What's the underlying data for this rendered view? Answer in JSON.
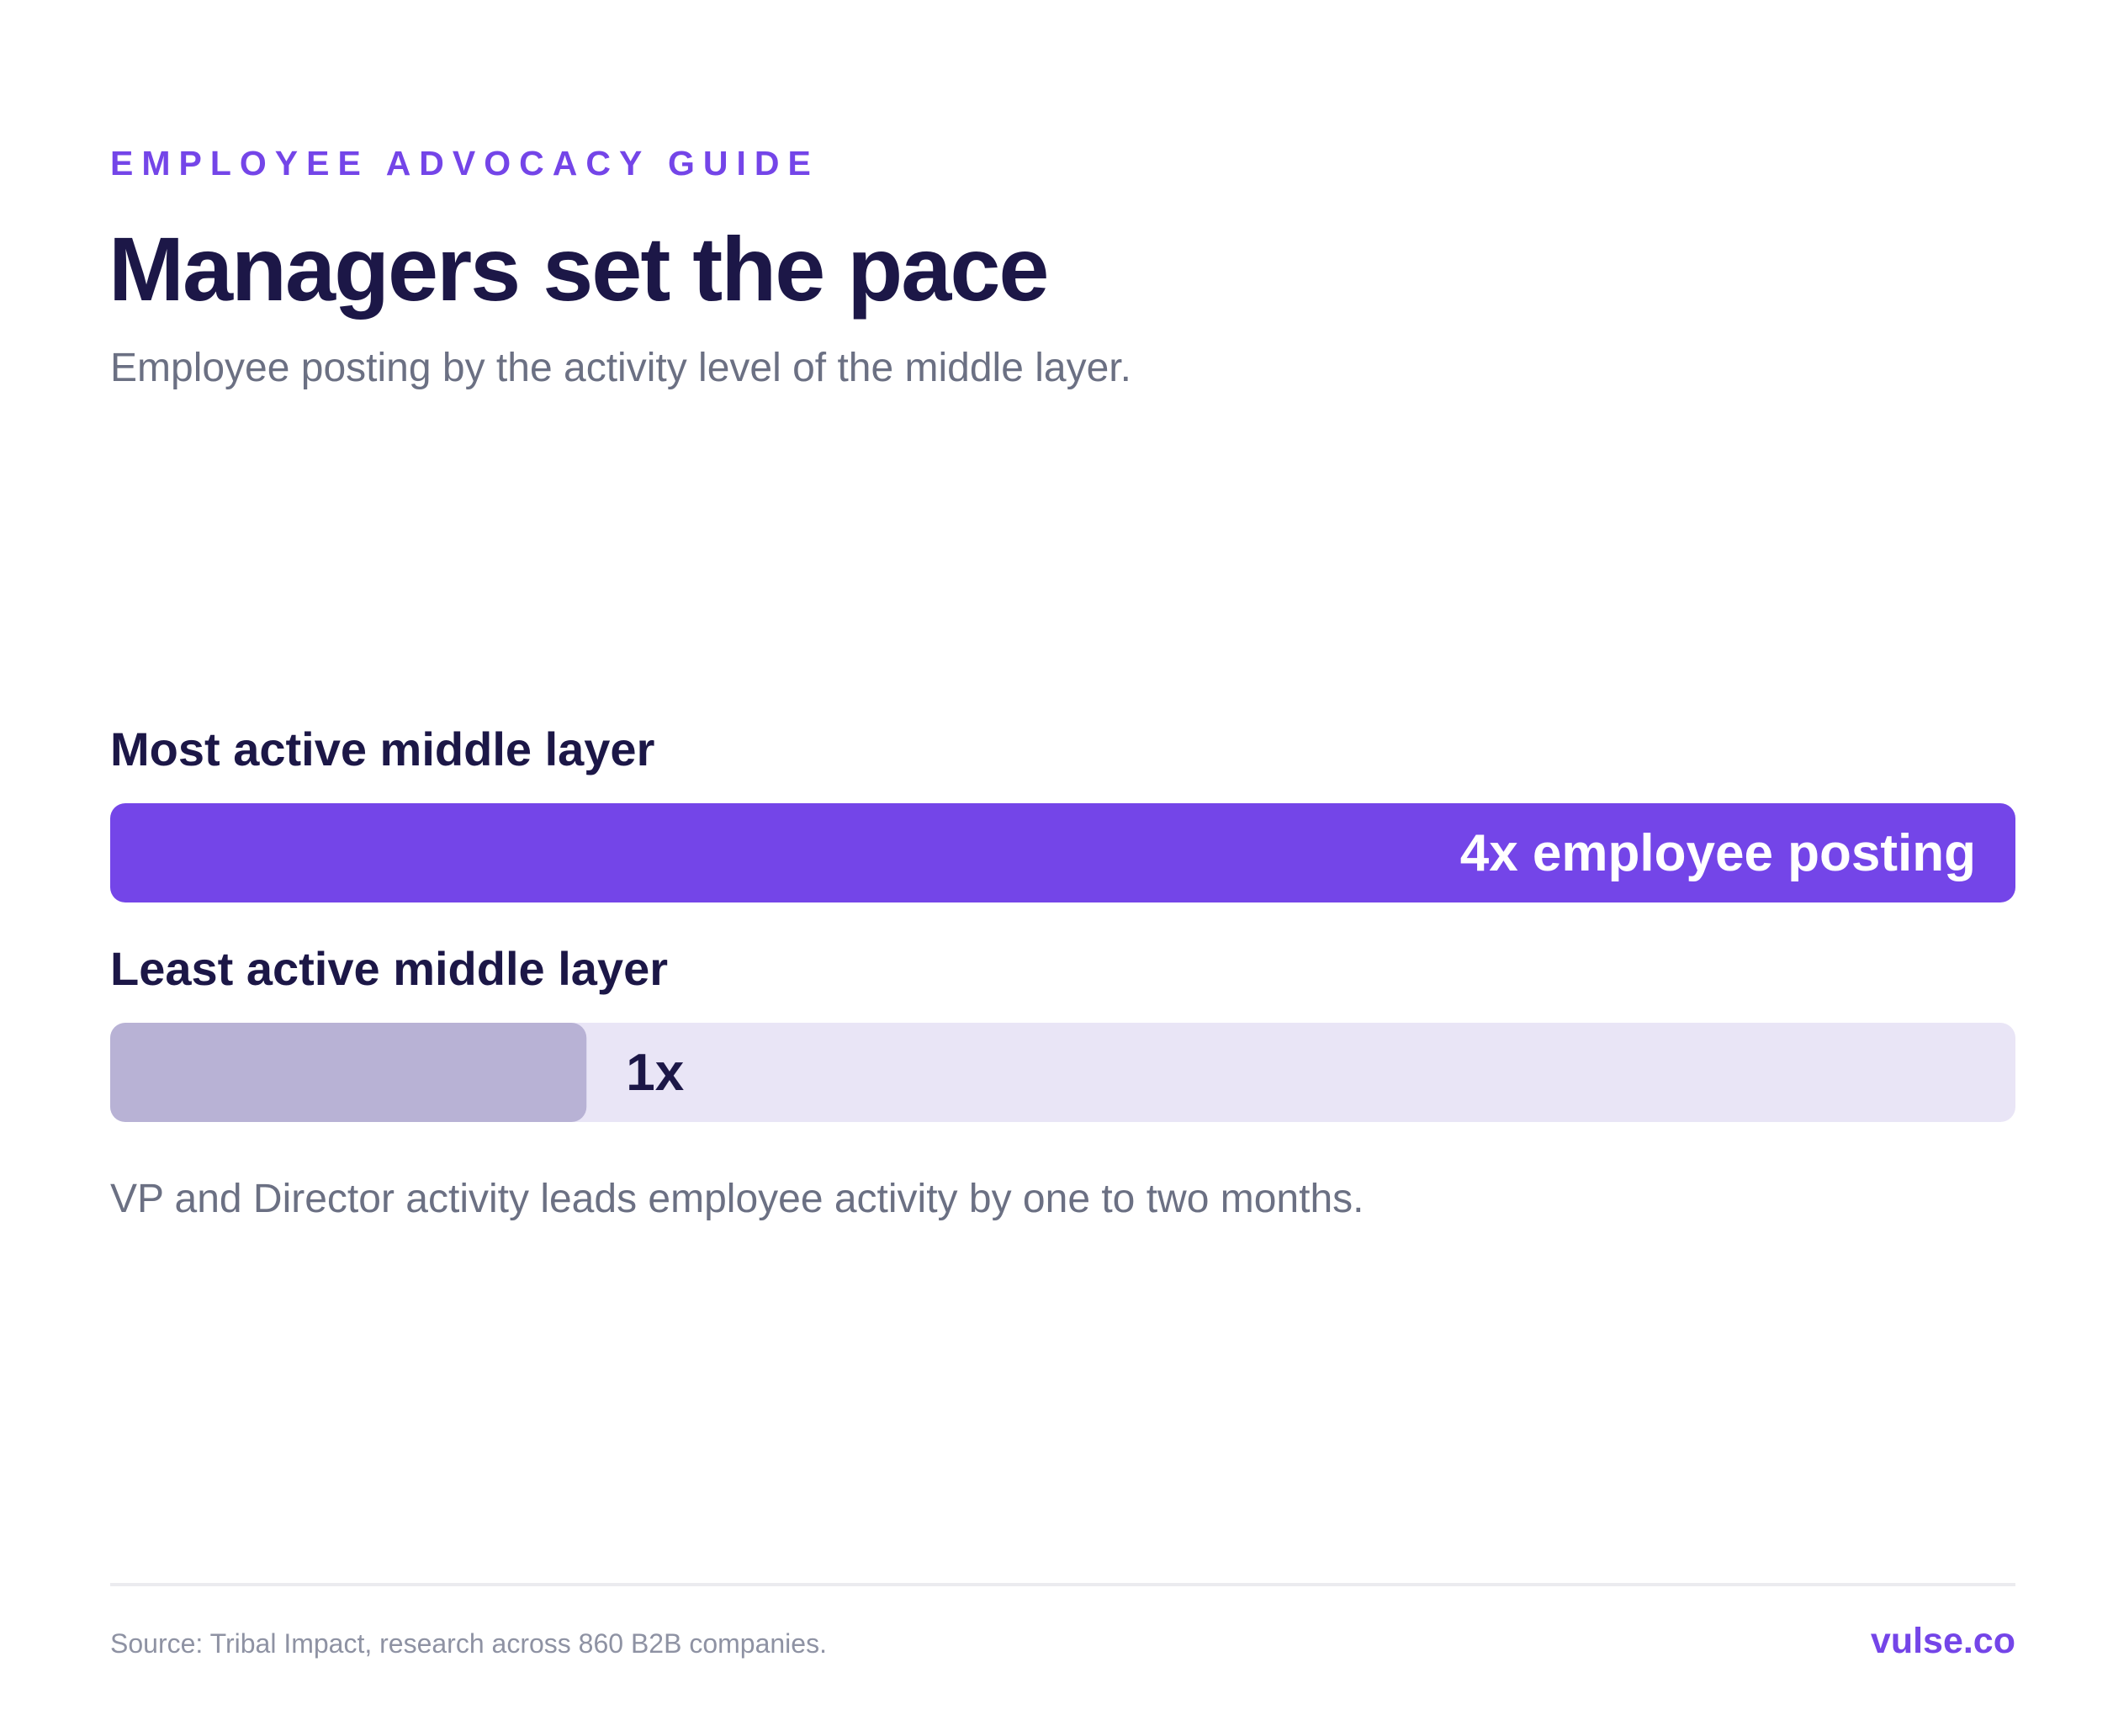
{
  "header": {
    "eyebrow": "EMPLOYEE ADVOCACY GUIDE",
    "title": "Managers set the pace",
    "subtitle": "Employee posting by the activity level of the middle layer."
  },
  "note": "VP and Director activity leads employee activity by one to two months.",
  "footer": {
    "source": "Source: Tribal Impact, research across 860 B2B companies.",
    "brand": "vulse.co"
  },
  "colors": {
    "accent": "#7445e8",
    "muted_bar": "#b8b2d5",
    "track": "#e9e5f6",
    "text_dark": "#1c1747",
    "text_light": "#ffffff"
  },
  "chart_data": {
    "type": "bar",
    "orientation": "horizontal",
    "categories": [
      "Most active middle layer",
      "Least active middle layer"
    ],
    "values": [
      4,
      1
    ],
    "value_labels": [
      "4x employee posting",
      "1x"
    ],
    "unit": "x employee posting",
    "xlim": [
      0,
      4
    ],
    "grid": false,
    "legend": "none"
  }
}
